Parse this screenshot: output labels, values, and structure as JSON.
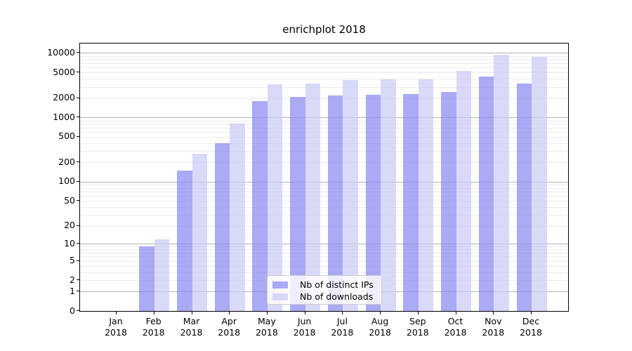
{
  "chart_data": {
    "type": "bar",
    "title": "enrichplot 2018",
    "categories": [
      "Jan",
      "Feb",
      "Mar",
      "Apr",
      "May",
      "Jun",
      "Jul",
      "Aug",
      "Sep",
      "Oct",
      "Nov",
      "Dec"
    ],
    "year_label": "2018",
    "series": [
      {
        "name": "Nb of distinct IPs",
        "color": "#8686f1",
        "opacity": 0.7,
        "values": [
          0,
          9,
          150,
          400,
          1810,
          2070,
          2190,
          2260,
          2330,
          2490,
          4360,
          3400
        ]
      },
      {
        "name": "Nb of downloads",
        "color": "#c9c9f5",
        "opacity": 0.7,
        "values": [
          0,
          12,
          270,
          800,
          3240,
          3390,
          3800,
          3900,
          3950,
          5280,
          9380,
          8790
        ]
      }
    ],
    "y_scale": "log1p",
    "y_ticks": [
      0,
      1,
      2,
      5,
      10,
      20,
      50,
      100,
      200,
      500,
      1000,
      2000,
      5000,
      10000
    ],
    "y_max": 14000,
    "major_gridlines": [
      1,
      10,
      100,
      1000,
      10000
    ],
    "grid": "on",
    "legend_position": "lower-center",
    "colors": {
      "axis": "#000000",
      "major_grid": "#b4b4b4",
      "minor_grid": "#ececec"
    }
  }
}
